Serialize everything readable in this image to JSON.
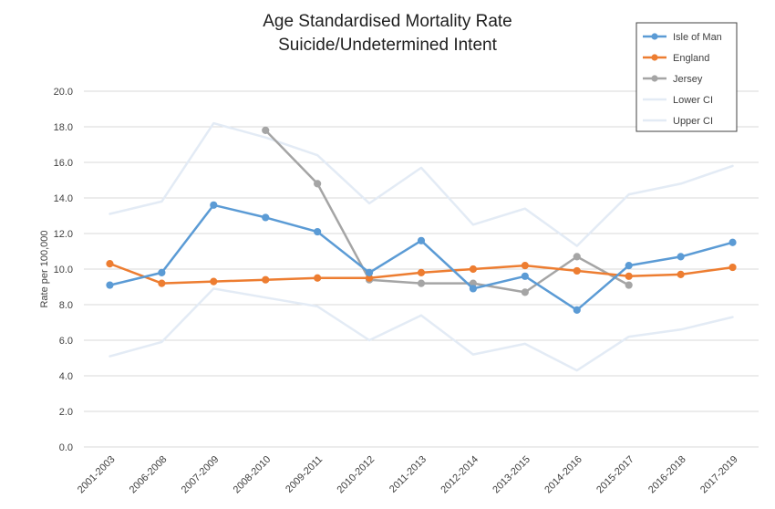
{
  "chart_data": {
    "type": "line",
    "title": "Age Standardised Mortality Rate",
    "subtitle": "Suicide/Undetermined Intent",
    "xlabel": "",
    "ylabel": "Rate per 100,000",
    "ylim": [
      0,
      20
    ],
    "y_ticks": [
      "0.0",
      "2.0",
      "4.0",
      "6.0",
      "8.0",
      "10.0",
      "12.0",
      "14.0",
      "16.0",
      "18.0",
      "20.0"
    ],
    "grid": true,
    "legend_position": "top-right",
    "categories": [
      "2001-2003",
      "2006-2008",
      "2007-2009",
      "2008-2010",
      "2009-2011",
      "2010-2012",
      "2011-2013",
      "2012-2014",
      "2013-2015",
      "2014-2016",
      "2015-2017",
      "2016-2018",
      "2017-2019"
    ],
    "series": [
      {
        "name": "Isle of Man",
        "color": "#5b9bd5",
        "marker": true,
        "width": 2.5,
        "values": [
          9.1,
          9.8,
          13.6,
          12.9,
          12.1,
          9.8,
          11.6,
          8.9,
          9.6,
          7.7,
          10.2,
          10.7,
          11.5
        ]
      },
      {
        "name": "England",
        "color": "#ed7d31",
        "marker": true,
        "width": 2.5,
        "values": [
          10.3,
          9.2,
          9.3,
          9.4,
          9.5,
          9.5,
          9.8,
          10.0,
          10.2,
          9.9,
          9.6,
          9.7,
          10.1
        ]
      },
      {
        "name": "Jersey",
        "color": "#a5a5a5",
        "marker": true,
        "width": 2.5,
        "values": [
          null,
          null,
          null,
          17.8,
          14.8,
          9.4,
          9.2,
          9.2,
          8.7,
          10.7,
          9.1,
          null,
          null
        ]
      },
      {
        "name": "Lower CI",
        "color": "#e3ebf5",
        "marker": false,
        "width": 2.5,
        "values": [
          5.1,
          5.9,
          8.9,
          8.4,
          7.9,
          6.0,
          7.4,
          5.2,
          5.8,
          4.3,
          6.2,
          6.6,
          7.3
        ]
      },
      {
        "name": "Upper CI",
        "color": "#e3ebf5",
        "marker": false,
        "width": 2.5,
        "values": [
          13.1,
          13.8,
          18.2,
          17.4,
          16.4,
          13.7,
          15.7,
          12.5,
          13.4,
          11.3,
          14.2,
          14.8,
          15.8
        ]
      }
    ]
  }
}
